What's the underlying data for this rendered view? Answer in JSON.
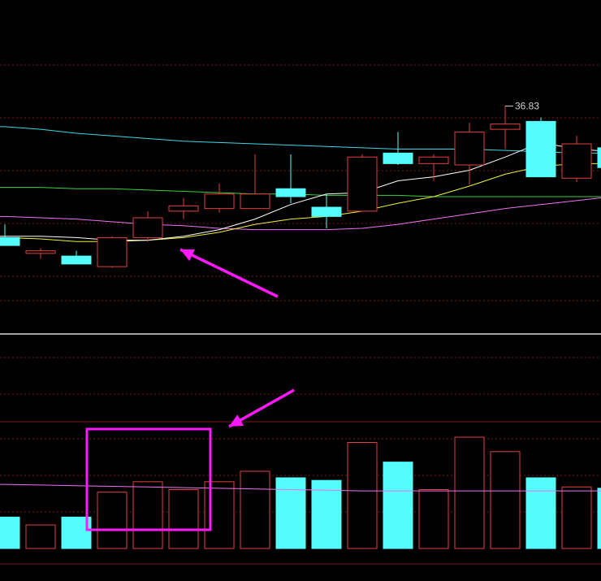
{
  "chart_data": {
    "type": "candlestick",
    "price_panel": {
      "ylim": [
        29.0,
        39.0
      ],
      "max_label": "36.83",
      "candles": [
        {
          "o": 31.85,
          "h": 32.35,
          "l": 31.55,
          "c": 31.55,
          "dir": "down"
        },
        {
          "o": 31.25,
          "h": 31.45,
          "l": 31.05,
          "c": 31.35,
          "dir": "up"
        },
        {
          "o": 31.15,
          "h": 31.35,
          "l": 30.85,
          "c": 30.85,
          "dir": "down"
        },
        {
          "o": 30.75,
          "h": 31.9,
          "l": 30.7,
          "c": 31.85,
          "dir": "up"
        },
        {
          "o": 31.85,
          "h": 32.85,
          "l": 31.7,
          "c": 32.6,
          "dir": "up"
        },
        {
          "o": 32.85,
          "h": 33.35,
          "l": 32.55,
          "c": 33.05,
          "dir": "up"
        },
        {
          "o": 32.95,
          "h": 33.9,
          "l": 32.8,
          "c": 33.5,
          "dir": "up"
        },
        {
          "o": 32.95,
          "h": 35.0,
          "l": 32.95,
          "c": 33.5,
          "dir": "up"
        },
        {
          "o": 33.7,
          "h": 35.0,
          "l": 33.15,
          "c": 33.4,
          "dir": "down"
        },
        {
          "o": 33.0,
          "h": 33.5,
          "l": 32.2,
          "c": 32.65,
          "dir": "down"
        },
        {
          "o": 32.85,
          "h": 35.0,
          "l": 32.85,
          "c": 34.9,
          "dir": "up"
        },
        {
          "o": 35.05,
          "h": 35.85,
          "l": 34.6,
          "c": 34.65,
          "dir": "down"
        },
        {
          "o": 34.65,
          "h": 35.0,
          "l": 34.0,
          "c": 34.9,
          "dir": "up"
        },
        {
          "o": 34.6,
          "h": 36.2,
          "l": 33.85,
          "c": 35.85,
          "dir": "up"
        },
        {
          "o": 35.95,
          "h": 36.83,
          "l": 35.2,
          "c": 36.15,
          "dir": "up"
        },
        {
          "o": 36.25,
          "h": 36.4,
          "l": 34.15,
          "c": 34.15,
          "dir": "down"
        },
        {
          "o": 35.4,
          "h": 35.7,
          "l": 33.95,
          "c": 34.1,
          "dir": "up"
        },
        {
          "o": 35.25,
          "h": 35.35,
          "l": 34.4,
          "c": 34.5,
          "dir": "down"
        }
      ],
      "ma_short": [
        31.9,
        31.9,
        31.85,
        31.75,
        31.75,
        31.9,
        32.15,
        32.55,
        33.1,
        33.5,
        33.55,
        34.0,
        34.15,
        34.4,
        34.9,
        35.45,
        35.2,
        35.1
      ],
      "ma_mid": [
        31.85,
        31.8,
        31.7,
        31.7,
        31.75,
        31.85,
        32.05,
        32.35,
        32.55,
        32.65,
        32.85,
        33.15,
        33.4,
        33.8,
        34.25,
        34.55,
        34.65,
        34.65
      ],
      "ma_long": [
        36.05,
        35.95,
        35.8,
        35.7,
        35.6,
        35.5,
        35.45,
        35.4,
        35.35,
        35.3,
        35.25,
        35.2,
        35.2,
        35.2,
        35.15,
        35.1,
        35.05,
        35.05
      ],
      "ma_xlong": [
        33.75,
        33.75,
        33.7,
        33.7,
        33.65,
        33.6,
        33.55,
        33.5,
        33.5,
        33.45,
        33.45,
        33.45,
        33.4,
        33.4,
        33.4,
        33.4,
        33.4,
        33.4
      ],
      "ma_pink": [
        32.65,
        32.6,
        32.55,
        32.45,
        32.35,
        32.3,
        32.2,
        32.15,
        32.15,
        32.15,
        32.2,
        32.35,
        32.55,
        32.75,
        32.95,
        33.1,
        33.25,
        33.4
      ]
    },
    "volume_panel": {
      "ylim": [
        0,
        9
      ],
      "values": [
        2.4,
        1.8,
        2.4,
        4.3,
        5.1,
        4.5,
        5.1,
        5.9,
        5.4,
        5.2,
        8.1,
        6.6,
        4.5,
        8.5,
        7.4,
        5.4,
        4.7,
        4.6
      ],
      "dir": [
        "down",
        "up",
        "down",
        "up",
        "up",
        "up",
        "up",
        "up",
        "down",
        "down",
        "up",
        "down",
        "up",
        "up",
        "up",
        "down",
        "up",
        "down"
      ],
      "ma": [
        4.9,
        4.85,
        4.8,
        4.75,
        4.7,
        4.65,
        4.6,
        4.55,
        4.5,
        4.45,
        4.4,
        4.4,
        4.4,
        4.4,
        4.4,
        4.4,
        4.4,
        4.4
      ]
    }
  },
  "colors": {
    "up": "#e0413c",
    "down": "#54fcfc",
    "ma_short": "#ffffff",
    "ma_mid": "#f2f23a",
    "ma_long": "#3fd6e6",
    "ma_xlong": "#3fcf3f",
    "ma_pink": "#f070f0",
    "vol_ma": "#f070f0",
    "annotation": "#ff19ff",
    "grid": "#7a1818",
    "divider": "#d8d8d8"
  }
}
